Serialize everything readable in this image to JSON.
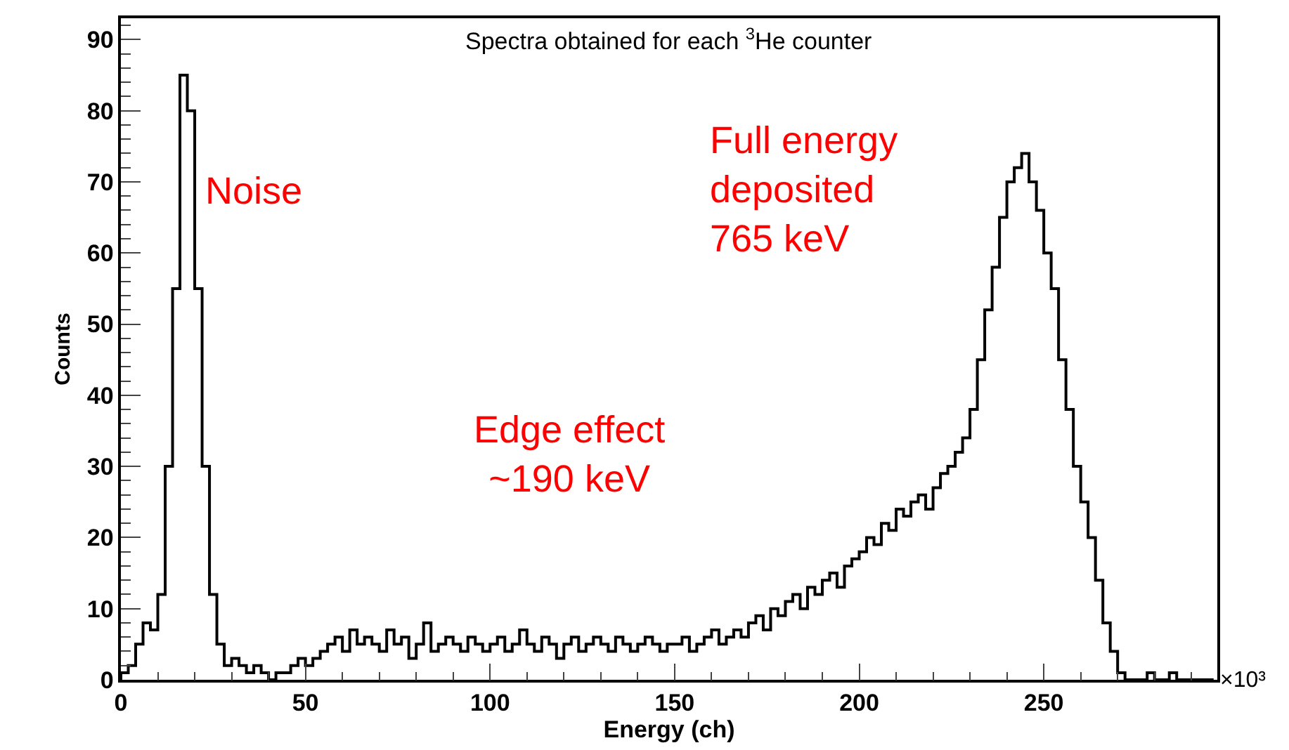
{
  "chart_data": {
    "type": "histogram",
    "title": "Spectra obtained for each $^{3}$He counter",
    "xlabel": "Energy (ch)",
    "ylabel": "Counts",
    "bins": [
      0,
      2,
      4,
      6,
      8,
      10,
      12,
      14,
      16,
      18,
      20,
      22,
      24,
      26,
      28,
      30,
      32,
      34,
      36,
      38,
      40,
      42,
      44,
      46,
      48,
      50,
      52,
      54,
      56,
      58,
      60,
      62,
      64,
      66,
      68,
      70,
      72,
      74,
      76,
      78,
      80,
      82,
      84,
      86,
      88,
      90,
      92,
      94,
      96,
      98,
      100,
      102,
      104,
      106,
      108,
      110,
      112,
      114,
      116,
      118,
      120,
      122,
      124,
      126,
      128,
      130,
      132,
      134,
      136,
      138,
      140,
      142,
      144,
      146,
      148,
      150,
      152,
      154,
      156,
      158,
      160,
      162,
      164,
      166,
      168,
      170,
      172,
      174,
      176,
      178,
      180,
      182,
      184,
      186,
      188,
      190,
      192,
      194,
      196,
      198,
      200,
      202,
      204,
      206,
      208,
      210,
      212,
      214,
      216,
      218,
      220,
      222,
      224,
      226,
      228,
      230,
      232,
      234,
      236,
      238,
      240,
      242,
      244,
      246,
      248,
      250,
      252,
      254,
      256,
      258,
      260,
      262,
      264,
      266,
      268,
      270,
      272,
      274,
      276,
      278,
      280,
      282,
      284,
      286,
      288,
      290,
      292,
      294,
      296
    ],
    "values": [
      1,
      2,
      5,
      8,
      7,
      12,
      30,
      55,
      85,
      80,
      55,
      30,
      12,
      5,
      2,
      3,
      2,
      1,
      2,
      1,
      0,
      1,
      1,
      2,
      3,
      2,
      3,
      4,
      5,
      6,
      4,
      7,
      5,
      6,
      5,
      4,
      7,
      5,
      6,
      3,
      5,
      8,
      4,
      5,
      6,
      5,
      4,
      6,
      5,
      4,
      5,
      6,
      4,
      5,
      7,
      5,
      4,
      6,
      5,
      3,
      5,
      6,
      4,
      5,
      6,
      5,
      4,
      6,
      5,
      4,
      5,
      6,
      5,
      4,
      5,
      5,
      6,
      4,
      5,
      6,
      7,
      5,
      6,
      7,
      6,
      8,
      9,
      7,
      10,
      9,
      11,
      12,
      10,
      13,
      12,
      14,
      15,
      13,
      16,
      17,
      18,
      20,
      19,
      22,
      21,
      24,
      23,
      25,
      26,
      24,
      27,
      29,
      30,
      32,
      34,
      38,
      45,
      52,
      58,
      65,
      70,
      72,
      74,
      70,
      66,
      60,
      55,
      45,
      38,
      30,
      25,
      20,
      14,
      8,
      4,
      1,
      0,
      0,
      0,
      1,
      0,
      0,
      1,
      0,
      0,
      0,
      0,
      0
    ],
    "color": "#000000",
    "xlim": [
      0,
      297
    ],
    "xticks": [
      0,
      50,
      100,
      150,
      200,
      250
    ],
    "ylim": [
      0,
      93
    ],
    "yticks": [
      0,
      10,
      20,
      30,
      40,
      50,
      60,
      70,
      80,
      90
    ],
    "annotations": [
      {
        "text": "Noise",
        "x": 22,
        "y": 72
      },
      "Edge effect\n~190 keV",
      "Full energy\ndeposited\n765 keV",
      "×10³"
    ]
  }
}
